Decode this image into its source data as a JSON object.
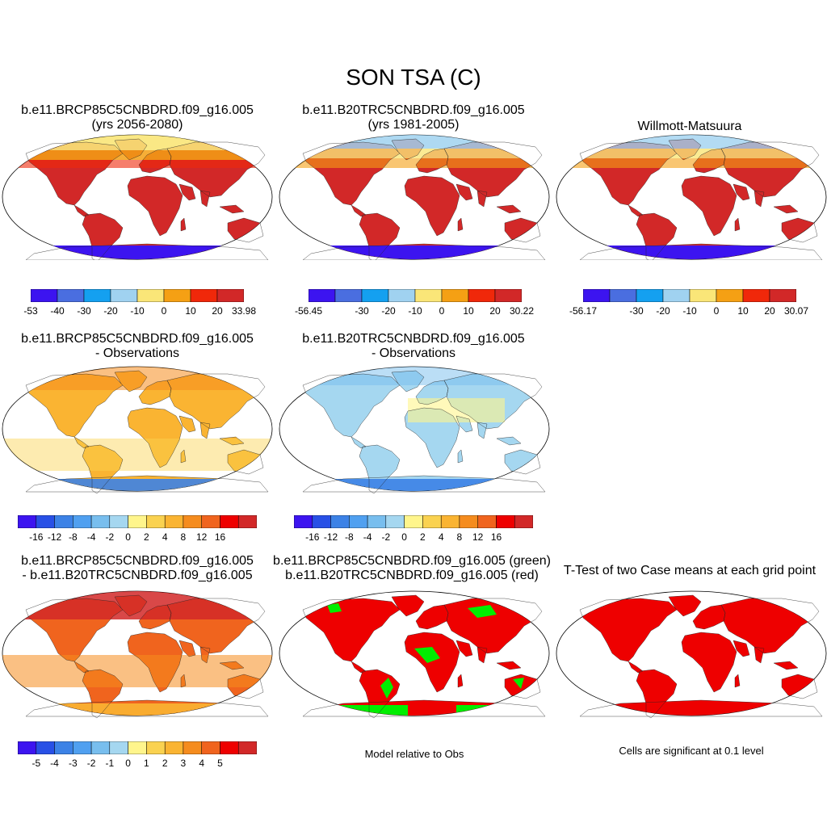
{
  "title": "SON TSA (C)",
  "colors": {
    "abs": [
      "#3c14f0",
      "#4a6ee0",
      "#14a0f0",
      "#a0d2f0",
      "#fae678",
      "#f5a014",
      "#f0280a",
      "#d22828"
    ],
    "diff16": [
      "#3c14f0",
      "#2850e6",
      "#3c82e6",
      "#50a0f0",
      "#78beee",
      "#a5d7f0",
      "#fff58c",
      "#fad250",
      "#fab432",
      "#f58c1e",
      "#f0641e",
      "#ee0000",
      "#d22828"
    ],
    "diff5": [
      "#3c14f0",
      "#2850e6",
      "#3c82e6",
      "#50a0f0",
      "#78beee",
      "#a5d7f0",
      "#fff58c",
      "#fad250",
      "#fab432",
      "#f58c1e",
      "#f0641e",
      "#ee0000",
      "#d22828"
    ],
    "green": "#00ee00",
    "red": "#ee0000"
  },
  "panels": {
    "p1": {
      "line1": "b.e11.BRCP85C5CNBDRD.f09_g16.005",
      "line2": "(yrs 2056-2080)"
    },
    "p2": {
      "line1": "b.e11.B20TRC5CNBDRD.f09_g16.005",
      "line2": "(yrs 1981-2005)"
    },
    "p3": {
      "line1": "Willmott-Matsuura"
    },
    "p4": {
      "line1": "b.e11.BRCP85C5CNBDRD.f09_g16.005",
      "line2": "- Observations"
    },
    "p5": {
      "line1": "b.e11.B20TRC5CNBDRD.f09_g16.005",
      "line2": "- Observations"
    },
    "p7": {
      "line1": "b.e11.BRCP85C5CNBDRD.f09_g16.005",
      "line2": "- b.e11.B20TRC5CNBDRD.f09_g16.005"
    },
    "p8": {
      "line1": "b.e11.BRCP85C5CNBDRD.f09_g16.005 (green)",
      "line2": "b.e11.B20TRC5CNBDRD.f09_g16.005 (red)",
      "note": "Model relative to Obs"
    },
    "p9": {
      "line1": "T-Test of two Case means at each grid point",
      "note": "Cells are significant at 0.1 level"
    }
  },
  "chart_data": [
    {
      "type": "heatmap",
      "panel": "p1",
      "colorbar_labels": [
        "-53",
        "-40",
        "-30",
        "-20",
        "-10",
        "0",
        "10",
        "20",
        "33.98"
      ],
      "colorbar_range": [
        -53,
        33.98
      ]
    },
    {
      "type": "heatmap",
      "panel": "p2",
      "colorbar_labels": [
        "-56.45",
        "-30",
        "-20",
        "-10",
        "0",
        "10",
        "20",
        "30.22"
      ],
      "colorbar_range": [
        -56.45,
        30.22
      ]
    },
    {
      "type": "heatmap",
      "panel": "p3",
      "colorbar_labels": [
        "-56.17",
        "-30",
        "-20",
        "-10",
        "0",
        "10",
        "20",
        "30.07"
      ],
      "colorbar_range": [
        -56.17,
        30.07
      ]
    },
    {
      "type": "heatmap",
      "panel": "p4",
      "colorbar_labels": [
        "-16",
        "-12",
        "-8",
        "-4",
        "-2",
        "0",
        "2",
        "4",
        "8",
        "12",
        "16"
      ]
    },
    {
      "type": "heatmap",
      "panel": "p5",
      "colorbar_labels": [
        "-16",
        "-12",
        "-8",
        "-4",
        "-2",
        "0",
        "2",
        "4",
        "8",
        "12",
        "16"
      ]
    },
    {
      "type": "heatmap",
      "panel": "p7",
      "colorbar_labels": [
        "-5",
        "-4",
        "-3",
        "-2",
        "-1",
        "0",
        "1",
        "2",
        "3",
        "4",
        "5"
      ]
    },
    {
      "type": "heatmap",
      "panel": "p8",
      "categories": [
        "green",
        "red"
      ]
    },
    {
      "type": "heatmap",
      "panel": "p9",
      "categories": [
        "significant"
      ]
    }
  ]
}
